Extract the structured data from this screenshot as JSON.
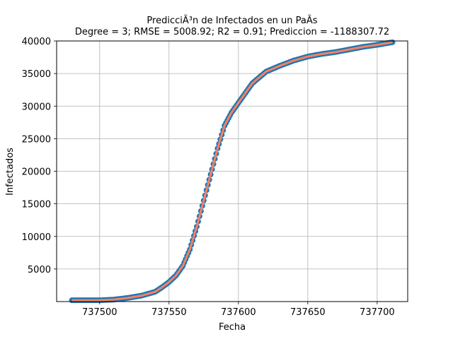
{
  "chart_data": {
    "type": "scatter",
    "title": "PredicciÃ³n de Infectados en un PaÃ­s",
    "subtitle": "Degree = 3; RMSE = 5008.92; R2 = 0.91; Prediccion = -1188307.72",
    "xlabel": "Fecha",
    "ylabel": "Infectados",
    "xlim": [
      737469,
      737722
    ],
    "ylim": [
      0,
      40000
    ],
    "x_ticks": [
      737500,
      737550,
      737600,
      737650,
      737700
    ],
    "y_ticks": [
      5000,
      10000,
      15000,
      20000,
      25000,
      30000,
      35000,
      40000
    ],
    "grid": true,
    "colors": {
      "points": "#1f77b4",
      "line": "#fa8060"
    },
    "curve_points": [
      [
        737480,
        200
      ],
      [
        737490,
        200
      ],
      [
        737500,
        200
      ],
      [
        737510,
        300
      ],
      [
        737520,
        550
      ],
      [
        737530,
        900
      ],
      [
        737540,
        1500
      ],
      [
        737545,
        2200
      ],
      [
        737550,
        3000
      ],
      [
        737555,
        4000
      ],
      [
        737560,
        5500
      ],
      [
        737565,
        8000
      ],
      [
        737570,
        11500
      ],
      [
        737575,
        15500
      ],
      [
        737580,
        19500
      ],
      [
        737585,
        23500
      ],
      [
        737590,
        27000
      ],
      [
        737595,
        29000
      ],
      [
        737600,
        30500
      ],
      [
        737605,
        32000
      ],
      [
        737610,
        33500
      ],
      [
        737620,
        35300
      ],
      [
        737630,
        36200
      ],
      [
        737640,
        37000
      ],
      [
        737650,
        37600
      ],
      [
        737660,
        38000
      ],
      [
        737670,
        38300
      ],
      [
        737680,
        38700
      ],
      [
        737690,
        39100
      ],
      [
        737700,
        39400
      ],
      [
        737711,
        39800
      ]
    ]
  }
}
